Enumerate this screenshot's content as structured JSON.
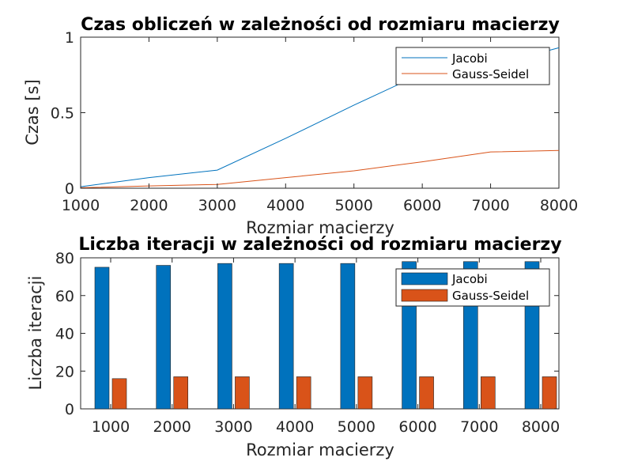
{
  "chart_data": [
    {
      "type": "line",
      "title": "Czas obliczeń w zależności od rozmiaru macierzy",
      "xlabel": "Rozmiar macierzy",
      "ylabel": "Czas [s]",
      "xlim": [
        1000,
        8000
      ],
      "ylim": [
        0,
        1
      ],
      "xticks": [
        1000,
        2000,
        3000,
        4000,
        5000,
        6000,
        7000,
        8000
      ],
      "yticks": [
        0,
        0.5,
        1
      ],
      "x": [
        1000,
        2000,
        3000,
        4000,
        5000,
        6000,
        7000,
        8000
      ],
      "series": [
        {
          "name": "Jacobi",
          "color": "#0072bd",
          "values": [
            0.01,
            0.07,
            0.12,
            0.33,
            0.55,
            0.76,
            0.81,
            0.93
          ]
        },
        {
          "name": "Gauss-Seidel",
          "color": "#d95319",
          "values": [
            0.003,
            0.015,
            0.025,
            0.07,
            0.115,
            0.175,
            0.24,
            0.25
          ]
        }
      ],
      "legend": "top-right",
      "grid": false
    },
    {
      "type": "bar",
      "title": "Liczba iteracji w zależności od rozmiaru macierzy",
      "xlabel": "Rozmiar macierzy",
      "ylabel": "Liczba iteracji",
      "ylim": [
        0,
        80
      ],
      "yticks": [
        0,
        20,
        40,
        60,
        80
      ],
      "categories": [
        "1000",
        "2000",
        "3000",
        "4000",
        "5000",
        "6000",
        "7000",
        "8000"
      ],
      "series": [
        {
          "name": "Jacobi",
          "color": "#0072bd",
          "values": [
            75,
            76,
            77,
            77,
            77,
            78,
            78,
            78
          ]
        },
        {
          "name": "Gauss-Seidel",
          "color": "#d95319",
          "values": [
            16,
            17,
            17,
            17,
            17,
            17,
            17,
            17
          ]
        }
      ],
      "legend": "top-right",
      "grid": false
    }
  ]
}
